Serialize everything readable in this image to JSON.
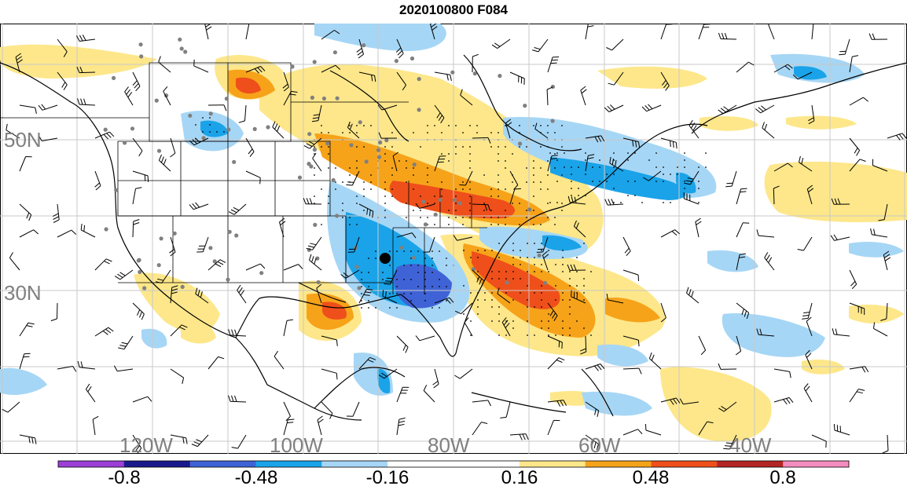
{
  "title": "2020100800 F084",
  "lon_labels": [
    "120W",
    "100W",
    "80W",
    "60W",
    "40W"
  ],
  "lat_labels": [
    "50N",
    "30N"
  ],
  "colorbar": {
    "colors": [
      "#9b3fd6",
      "#1a1a8c",
      "#3f63d6",
      "#1aa3e8",
      "#a6d6f5",
      "#ffffff",
      "#ffffff",
      "#fde78a",
      "#f6a31a",
      "#ef4f1a",
      "#b32424",
      "#f58cbf"
    ],
    "tick_labels": [
      "-0.8",
      "-0.48",
      "-0.16",
      "0.16",
      "0.48",
      "0.8"
    ]
  },
  "legend_colors": {
    "neg_strong": "#3f63d6",
    "neg_mid": "#1aa3e8",
    "neg_weak": "#a6d6f5",
    "pos_weak": "#fde78a",
    "pos_mid": "#f6a31a",
    "pos_strong": "#ef4f1a",
    "pos_max": "#b32424"
  },
  "markers": {
    "station": "gray-station-dot",
    "focus": "black-focus-dot"
  }
}
